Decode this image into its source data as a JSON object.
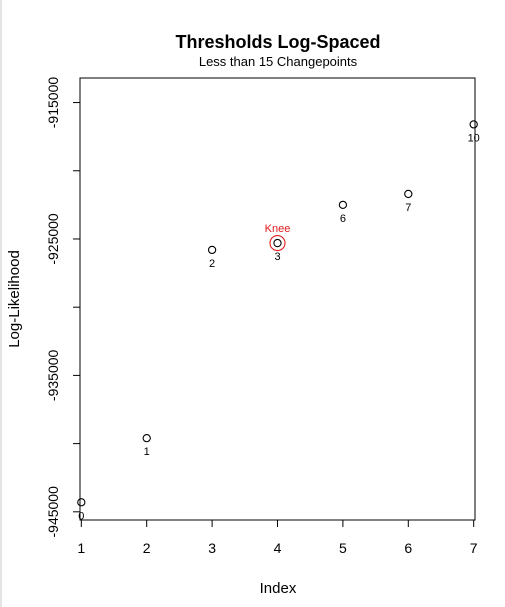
{
  "chart_data": {
    "type": "scatter",
    "title": "Thresholds Log-Spaced",
    "subtitle": "Less than 15 Changepoints",
    "xlabel": "Index",
    "ylabel": "Log-Likelihood",
    "xlim": [
      0.98,
      7.02
    ],
    "ylim": [
      -945600,
      -913200
    ],
    "x_ticks": [
      1,
      2,
      3,
      4,
      5,
      6,
      7
    ],
    "y_ticks": [
      -945000,
      -940000,
      -935000,
      -930000,
      -925000,
      -920000,
      -915000
    ],
    "y_tick_labels": [
      "-945000",
      "",
      "-935000",
      "",
      "-925000",
      "",
      "-915000"
    ],
    "points": [
      {
        "x": 1,
        "y": -944300,
        "label": "0"
      },
      {
        "x": 2,
        "y": -939600,
        "label": "1"
      },
      {
        "x": 3,
        "y": -925800,
        "label": "2"
      },
      {
        "x": 4,
        "y": -925300,
        "label": "3"
      },
      {
        "x": 5,
        "y": -922500,
        "label": "6"
      },
      {
        "x": 6,
        "y": -921700,
        "label": "7"
      },
      {
        "x": 7,
        "y": -916600,
        "label": "10"
      }
    ],
    "highlight": {
      "index": 3,
      "label": "Knee",
      "color": "#e41a1c"
    },
    "point_color": "#000000",
    "grid": false,
    "legend": "none"
  }
}
